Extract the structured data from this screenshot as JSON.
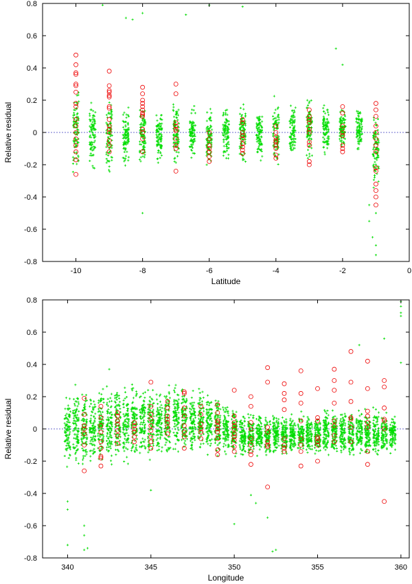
{
  "chart_data": [
    {
      "type": "scatter",
      "xlabel": "Latitude",
      "ylabel": "Relative residual",
      "xlim": [
        -11,
        0
      ],
      "ylim": [
        -0.8,
        0.8
      ],
      "x_ticks": [
        -10,
        -8,
        -6,
        -4,
        -2,
        0
      ],
      "y_ticks": [
        -0.8,
        -0.6,
        -0.4,
        -0.2,
        0,
        0.2,
        0.4,
        0.6,
        0.8
      ],
      "zero_line": true,
      "grid": false,
      "colors": {
        "points": "#00dd00",
        "circles": "#ee0000",
        "zero_line": "#6a6acd"
      },
      "columns": [
        {
          "x": -10,
          "min": -0.3,
          "max": 0.3
        },
        {
          "x": -9.5,
          "min": -0.25,
          "max": 0.22
        },
        {
          "x": -9,
          "min": -0.28,
          "max": 0.25
        },
        {
          "x": -8.5,
          "min": -0.25,
          "max": 0.2
        },
        {
          "x": -8,
          "min": -0.3,
          "max": 0.25
        },
        {
          "x": -7.5,
          "min": -0.22,
          "max": 0.18
        },
        {
          "x": -7,
          "min": -0.25,
          "max": 0.25
        },
        {
          "x": -6.5,
          "min": -0.2,
          "max": 0.18
        },
        {
          "x": -6,
          "min": -0.25,
          "max": 0.2
        },
        {
          "x": -5.5,
          "min": -0.22,
          "max": 0.2
        },
        {
          "x": -5,
          "min": -0.25,
          "max": 0.25
        },
        {
          "x": -4.5,
          "min": -0.22,
          "max": 0.2
        },
        {
          "x": -4,
          "min": -0.25,
          "max": 0.25
        },
        {
          "x": -3.5,
          "min": -0.2,
          "max": 0.22
        },
        {
          "x": -3,
          "min": -0.22,
          "max": 0.25
        },
        {
          "x": -2.5,
          "min": -0.18,
          "max": 0.22
        },
        {
          "x": -2,
          "min": -0.15,
          "max": 0.2
        },
        {
          "x": -1.5,
          "min": -0.15,
          "max": 0.2
        },
        {
          "x": -1,
          "min": -0.4,
          "max": 0.2
        }
      ],
      "outliers": [
        [
          -9.2,
          0.79
        ],
        [
          -8.5,
          0.71
        ],
        [
          -8.3,
          0.7
        ],
        [
          -8,
          0.74
        ],
        [
          -6.7,
          0.73
        ],
        [
          -6,
          0.79
        ],
        [
          -5,
          0.78
        ],
        [
          -2.2,
          0.52
        ],
        [
          -2,
          0.42
        ],
        [
          -8,
          -0.5
        ],
        [
          -1.2,
          -0.55
        ],
        [
          -1.1,
          -0.65
        ],
        [
          -1,
          -0.7
        ],
        [
          -1,
          -0.76
        ],
        [
          -1.2,
          -0.45
        ],
        [
          -1,
          -0.5
        ]
      ],
      "circles": [
        {
          "x": -10,
          "y": [
            0.48,
            0.42,
            0.37,
            0.36,
            0.3,
            0.29,
            0.25,
            0.18,
            0.16,
            0.08,
            0.04,
            0.0,
            -0.04,
            -0.08,
            -0.12,
            -0.17,
            -0.26
          ]
        },
        {
          "x": -9,
          "y": [
            0.38,
            0.29,
            0.26,
            0.25,
            0.23,
            0.22,
            0.16,
            0.15,
            0.08,
            0.04,
            0.02,
            0.0,
            -0.05,
            -0.08,
            -0.12
          ]
        },
        {
          "x": -8,
          "y": [
            0.28,
            0.24,
            0.2,
            0.18,
            0.16,
            0.14,
            0.12,
            0.11,
            0.1,
            0.02,
            0.0,
            -0.04,
            -0.12
          ]
        },
        {
          "x": -7,
          "y": [
            0.3,
            0.24,
            0.06,
            0.04,
            0.02,
            0.01,
            -0.04,
            -0.08,
            -0.1,
            -0.24
          ]
        },
        {
          "x": -6,
          "y": [
            0.0,
            -0.04,
            -0.08,
            -0.1,
            -0.12,
            -0.15,
            -0.18
          ]
        },
        {
          "x": -5,
          "y": [
            0.08,
            0.06,
            0.0,
            -0.02,
            -0.04,
            -0.07,
            -0.09,
            -0.11,
            -0.13
          ]
        },
        {
          "x": -4,
          "y": [
            0.04,
            0.0,
            -0.03,
            -0.05,
            -0.06,
            -0.08,
            -0.1,
            -0.14,
            -0.16
          ]
        },
        {
          "x": -3,
          "y": [
            0.14,
            0.1,
            0.08,
            0.06,
            0.02,
            0.0,
            -0.06,
            -0.08,
            -0.18,
            -0.2
          ]
        },
        {
          "x": -2,
          "y": [
            0.16,
            0.12,
            0.04,
            0.0,
            -0.02,
            -0.08,
            -0.1,
            -0.12
          ]
        },
        {
          "x": -1,
          "y": [
            0.18,
            0.14,
            0.1,
            0.04,
            0.0,
            -0.04,
            -0.08,
            -0.12,
            -0.22,
            -0.24,
            -0.32,
            -0.36,
            -0.4,
            -0.45
          ]
        }
      ]
    },
    {
      "type": "scatter",
      "xlabel": "Longitude",
      "ylabel": "Relative residual",
      "xlim": [
        338.5,
        360.5
      ],
      "ylim": [
        -0.8,
        0.8
      ],
      "x_ticks": [
        340,
        345,
        350,
        355,
        360
      ],
      "y_ticks": [
        -0.8,
        -0.6,
        -0.4,
        -0.2,
        0,
        0.2,
        0.4,
        0.6,
        0.8
      ],
      "zero_line": true,
      "grid": false,
      "colors": {
        "points": "#00dd00",
        "circles": "#ee0000",
        "zero_line": "#6a6acd"
      },
      "columns": [
        {
          "x": 340,
          "min": -0.3,
          "max": 0.3
        },
        {
          "x": 340.5,
          "min": -0.28,
          "max": 0.3
        },
        {
          "x": 341,
          "min": -0.3,
          "max": 0.3
        },
        {
          "x": 341.5,
          "min": -0.28,
          "max": 0.32
        },
        {
          "x": 342,
          "min": -0.3,
          "max": 0.35
        },
        {
          "x": 342.5,
          "min": -0.28,
          "max": 0.3
        },
        {
          "x": 343,
          "min": -0.26,
          "max": 0.33
        },
        {
          "x": 343.5,
          "min": -0.25,
          "max": 0.3
        },
        {
          "x": 344,
          "min": -0.25,
          "max": 0.33
        },
        {
          "x": 344.5,
          "min": -0.22,
          "max": 0.33
        },
        {
          "x": 345,
          "min": -0.25,
          "max": 0.33
        },
        {
          "x": 345.5,
          "min": -0.22,
          "max": 0.33
        },
        {
          "x": 346,
          "min": -0.22,
          "max": 0.33
        },
        {
          "x": 346.5,
          "min": -0.2,
          "max": 0.33
        },
        {
          "x": 347,
          "min": -0.22,
          "max": 0.33
        },
        {
          "x": 347.5,
          "min": -0.2,
          "max": 0.3
        },
        {
          "x": 348,
          "min": -0.2,
          "max": 0.28
        },
        {
          "x": 348.5,
          "min": -0.2,
          "max": 0.25
        },
        {
          "x": 349,
          "min": -0.2,
          "max": 0.25
        },
        {
          "x": 349.5,
          "min": -0.18,
          "max": 0.2
        },
        {
          "x": 350,
          "min": -0.2,
          "max": 0.15
        },
        {
          "x": 350.5,
          "min": -0.2,
          "max": 0.12
        },
        {
          "x": 351,
          "min": -0.2,
          "max": 0.12
        },
        {
          "x": 351.5,
          "min": -0.18,
          "max": 0.1
        },
        {
          "x": 352,
          "min": -0.2,
          "max": 0.1
        },
        {
          "x": 352.5,
          "min": -0.18,
          "max": 0.12
        },
        {
          "x": 353,
          "min": -0.2,
          "max": 0.12
        },
        {
          "x": 353.5,
          "min": -0.18,
          "max": 0.12
        },
        {
          "x": 354,
          "min": -0.2,
          "max": 0.12
        },
        {
          "x": 354.5,
          "min": -0.18,
          "max": 0.12
        },
        {
          "x": 355,
          "min": -0.2,
          "max": 0.12
        },
        {
          "x": 355.5,
          "min": -0.18,
          "max": 0.14
        },
        {
          "x": 356,
          "min": -0.2,
          "max": 0.14
        },
        {
          "x": 356.5,
          "min": -0.18,
          "max": 0.14
        },
        {
          "x": 357,
          "min": -0.2,
          "max": 0.14
        },
        {
          "x": 357.5,
          "min": -0.18,
          "max": 0.15
        },
        {
          "x": 358,
          "min": -0.2,
          "max": 0.15
        },
        {
          "x": 358.5,
          "min": -0.18,
          "max": 0.15
        },
        {
          "x": 359,
          "min": -0.2,
          "max": 0.15
        },
        {
          "x": 359.5,
          "min": -0.18,
          "max": 0.12
        }
      ],
      "outliers": [
        [
          340,
          -0.5
        ],
        [
          340,
          -0.45
        ],
        [
          340,
          -0.72
        ],
        [
          341,
          -0.6
        ],
        [
          341,
          -0.66
        ],
        [
          341,
          -0.75
        ],
        [
          341.2,
          -0.74
        ],
        [
          345,
          -0.38
        ],
        [
          350,
          -0.59
        ],
        [
          352,
          -0.55
        ],
        [
          352.3,
          -0.76
        ],
        [
          352.5,
          -0.75
        ],
        [
          351,
          -0.41
        ],
        [
          351.3,
          -0.46
        ],
        [
          357.5,
          0.52
        ],
        [
          359,
          0.56
        ],
        [
          360,
          0.79
        ],
        [
          360,
          0.76
        ],
        [
          360,
          0.72
        ],
        [
          360,
          0.7
        ],
        [
          360,
          0.41
        ],
        [
          342.5,
          0.37
        ]
      ],
      "circles": [
        {
          "x": 341,
          "y": [
            0.19,
            0.09,
            0.02,
            0.0,
            -0.03,
            -0.1,
            -0.26
          ]
        },
        {
          "x": 342,
          "y": [
            0.14,
            0.07,
            0.02,
            -0.02,
            -0.08,
            -0.12,
            -0.17,
            -0.18,
            -0.23
          ]
        },
        {
          "x": 343,
          "y": [
            0.1,
            0.08,
            0.05,
            0.03,
            -0.01,
            -0.04,
            -0.09
          ]
        },
        {
          "x": 344,
          "y": [
            0.04,
            0.02,
            0.0,
            -0.02,
            -0.05,
            -0.08
          ]
        },
        {
          "x": 345,
          "y": [
            0.29,
            0.14,
            0.09,
            0.06,
            0.02,
            -0.01,
            -0.05,
            -0.08,
            -0.12
          ]
        },
        {
          "x": 346,
          "y": [
            0.17,
            0.13,
            0.08,
            0.06,
            0.04,
            0.01,
            -0.03
          ]
        },
        {
          "x": 347,
          "y": [
            0.23,
            0.22,
            0.13,
            0.08,
            0.02,
            -0.02,
            -0.05,
            -0.12
          ]
        },
        {
          "x": 348,
          "y": [
            0.14,
            0.09,
            0.03,
            0.0,
            -0.02,
            -0.06
          ]
        },
        {
          "x": 349,
          "y": [
            0.15,
            0.1,
            0.05,
            0.04,
            0.02,
            0.0,
            -0.02,
            -0.06,
            -0.13,
            -0.16
          ]
        },
        {
          "x": 350,
          "y": [
            0.24,
            0.08,
            0.04,
            0.02,
            0.0,
            -0.03,
            -0.05,
            -0.07,
            -0.11,
            -0.14
          ]
        },
        {
          "x": 351,
          "y": [
            0.2,
            0.14,
            0.04,
            0.0,
            -0.06,
            -0.1,
            -0.14,
            -0.16,
            -0.22
          ]
        },
        {
          "x": 352,
          "y": [
            0.38,
            0.29,
            0.01,
            -0.02,
            -0.08,
            -0.1,
            -0.11,
            -0.36
          ]
        },
        {
          "x": 353,
          "y": [
            0.28,
            0.22,
            0.18,
            0.12,
            -0.06,
            -0.1,
            -0.12,
            -0.14
          ]
        },
        {
          "x": 354,
          "y": [
            0.36,
            0.22,
            0.16,
            0.05,
            -0.06,
            -0.1,
            -0.14,
            -0.23
          ]
        },
        {
          "x": 355,
          "y": [
            0.25,
            0.07,
            0.05,
            -0.05,
            -0.06,
            -0.08,
            -0.1,
            -0.2
          ]
        },
        {
          "x": 356,
          "y": [
            0.37,
            0.3,
            0.24,
            0.16,
            0.05,
            0.02,
            -0.04,
            -0.08
          ]
        },
        {
          "x": 357,
          "y": [
            0.48,
            0.29,
            0.17,
            0.07,
            0.06,
            0.01,
            -0.08
          ]
        },
        {
          "x": 358,
          "y": [
            0.42,
            0.25,
            0.11,
            0.08,
            0.04,
            0.01,
            -0.14,
            -0.22
          ]
        },
        {
          "x": 359,
          "y": [
            0.3,
            0.26,
            0.13,
            0.06,
            0.05,
            0.0,
            -0.45
          ]
        }
      ]
    }
  ]
}
